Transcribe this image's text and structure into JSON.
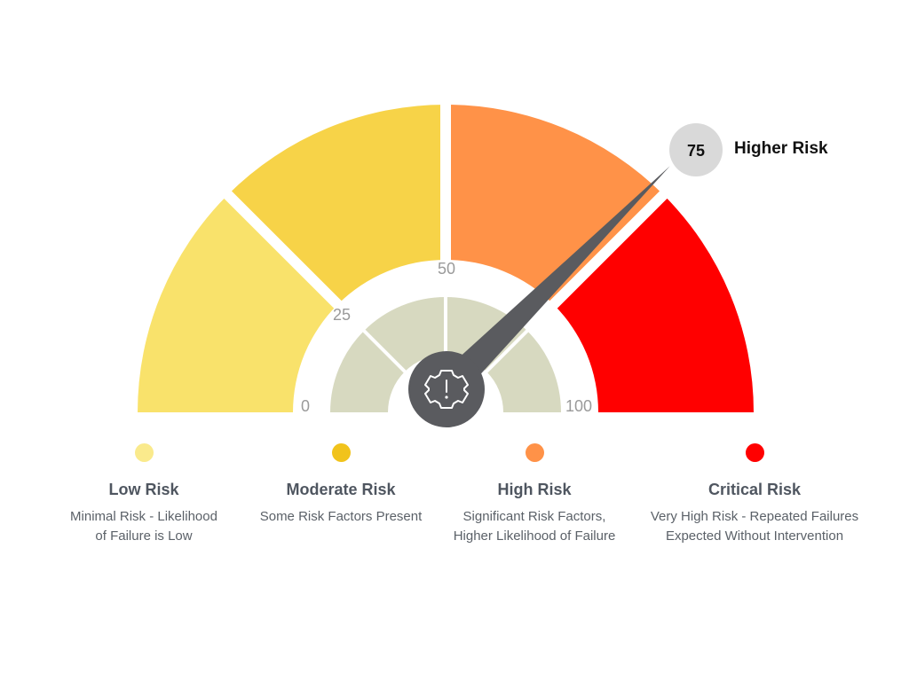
{
  "gauge": {
    "value": 75,
    "value_text": "75",
    "value_label": "Higher Risk",
    "min": 0,
    "max": 100,
    "ticks": [
      "0",
      "25",
      "50",
      "100"
    ],
    "center_icon": "gear-alert-icon",
    "segments": [
      {
        "from": 0,
        "to": 25,
        "color": "#f9e26b"
      },
      {
        "from": 25,
        "to": 50,
        "color": "#f7d348"
      },
      {
        "from": 50,
        "to": 75,
        "color": "#ff9248"
      },
      {
        "from": 75,
        "to": 100,
        "color": "#ff0000"
      }
    ],
    "inner_color": "#d7d9c0",
    "needle_color": "#5a5b5f"
  },
  "legend": [
    {
      "title": "Low Risk",
      "desc_lines": [
        "Minimal Risk - Likelihood",
        "of Failure is Low"
      ],
      "color": "#faea8c"
    },
    {
      "title": "Moderate Risk",
      "desc_lines": [
        "Some Risk Factors Present"
      ],
      "color": "#f1c31c"
    },
    {
      "title": "High Risk",
      "desc_lines": [
        "Significant Risk Factors,",
        "Higher Likelihood of Failure"
      ],
      "color": "#ff9248"
    },
    {
      "title": "Critical Risk",
      "desc_lines": [
        "Very High Risk - Repeated Failures",
        "Expected Without Intervention"
      ],
      "color": "#ff0000"
    }
  ]
}
